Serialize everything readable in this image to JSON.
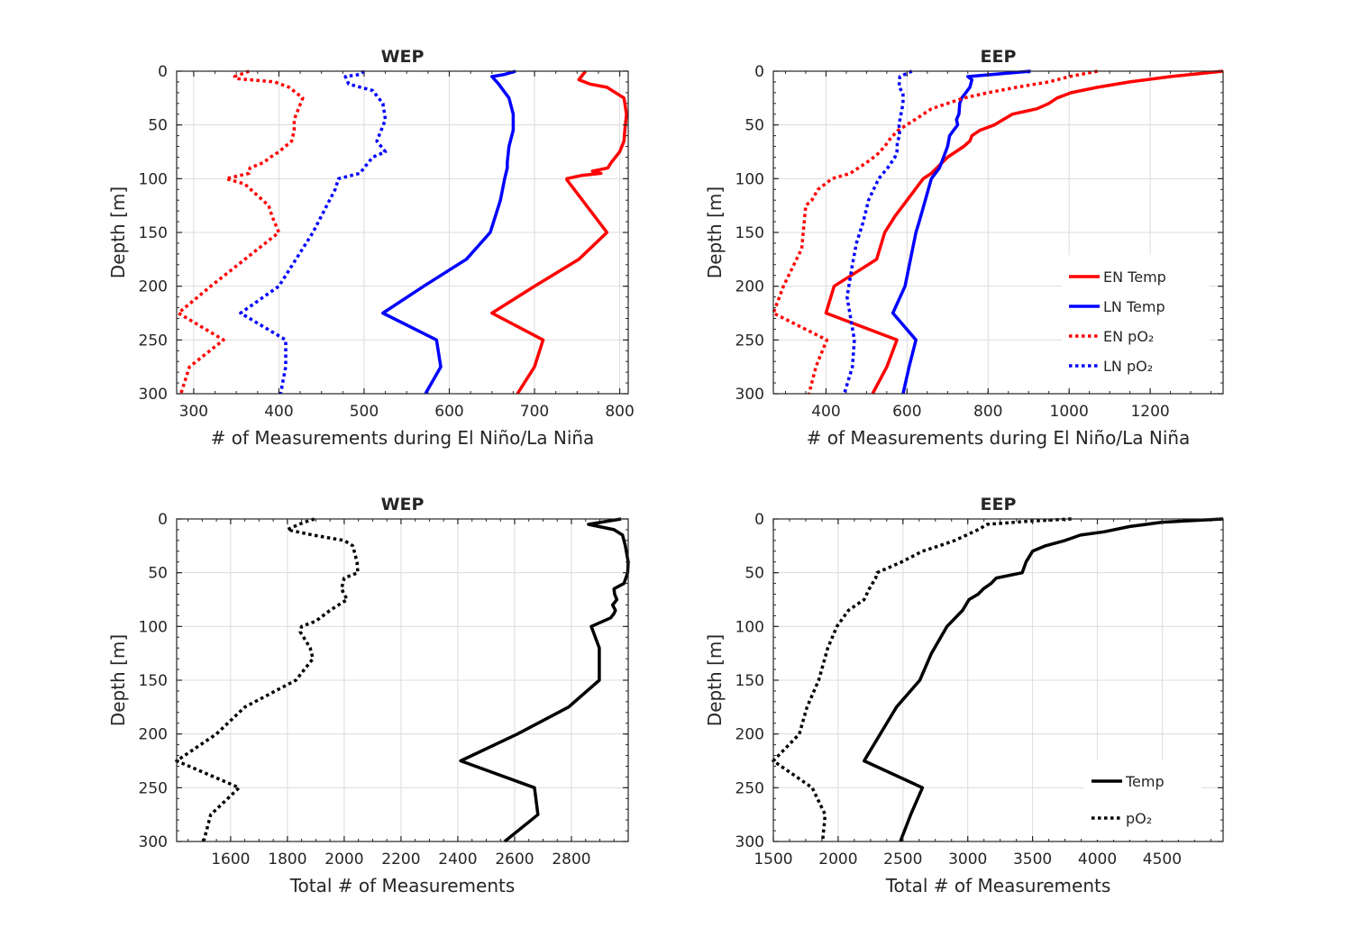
{
  "chart_data": [
    {
      "type": "line",
      "title": "WEP",
      "xlabel": "# of Measurements during El Niño/La Niña",
      "ylabel": "Depth [m]",
      "xlim": [
        280,
        810
      ],
      "ylim": [
        300,
        0
      ],
      "y_reversed": true,
      "xticks": [
        300,
        400,
        500,
        600,
        700,
        800
      ],
      "yticks": [
        0,
        50,
        100,
        150,
        200,
        250,
        300
      ],
      "grid": true,
      "legend": false,
      "series": [
        {
          "name": "EN Temp",
          "color": "#ff0000",
          "style": "solid",
          "x": [
            760,
            752,
            765,
            785,
            805,
            808,
            806,
            805,
            800,
            790,
            786,
            768,
            778,
            755,
            738,
            738,
            785,
            752,
            700,
            650,
            710,
            700,
            680
          ],
          "y": [
            0,
            8,
            12,
            15,
            25,
            40,
            55,
            65,
            75,
            85,
            90,
            93,
            95,
            97,
            100,
            101,
            150,
            175,
            200,
            225,
            250,
            275,
            300
          ]
        },
        {
          "name": "LN Temp",
          "color": "#0000ff",
          "style": "solid",
          "x": [
            678,
            665,
            650,
            658,
            670,
            675,
            675,
            670,
            668,
            668,
            665,
            660,
            648,
            620,
            570,
            522,
            585,
            590,
            572
          ],
          "y": [
            0,
            3,
            5,
            12,
            25,
            40,
            55,
            70,
            85,
            90,
            100,
            120,
            150,
            175,
            200,
            225,
            250,
            275,
            300
          ]
        },
        {
          "name": "EN pO₂",
          "color": "#ff0000",
          "style": "dotted",
          "x": [
            365,
            348,
            352,
            395,
            412,
            428,
            418,
            418,
            415,
            400,
            390,
            382,
            366,
            365,
            338,
            360,
            388,
            392,
            400,
            320,
            282,
            335,
            295,
            285
          ],
          "y": [
            0,
            5,
            7,
            10,
            15,
            25,
            45,
            55,
            65,
            75,
            80,
            85,
            90,
            95,
            100,
            105,
            125,
            135,
            150,
            200,
            225,
            250,
            275,
            300
          ]
        },
        {
          "name": "LN pO₂",
          "color": "#0000ff",
          "style": "dotted",
          "x": [
            500,
            495,
            478,
            482,
            510,
            522,
            525,
            520,
            515,
            525,
            510,
            495,
            470,
            466,
            440,
            400,
            355,
            408,
            408,
            402
          ],
          "y": [
            0,
            3,
            5,
            12,
            18,
            30,
            45,
            55,
            65,
            75,
            80,
            95,
            100,
            110,
            150,
            200,
            225,
            250,
            275,
            300
          ]
        }
      ]
    },
    {
      "type": "line",
      "title": "EEP",
      "xlabel": "# of Measurements during El Niño/La Niña",
      "ylabel": "Depth [m]",
      "xlim": [
        270,
        1380
      ],
      "ylim": [
        300,
        0
      ],
      "y_reversed": true,
      "xticks": [
        400,
        600,
        800,
        1000,
        1200
      ],
      "yticks": [
        0,
        50,
        100,
        150,
        200,
        250,
        300
      ],
      "grid": true,
      "legend": true,
      "legend_position": "bottom-right",
      "series": [
        {
          "name": "EN Temp",
          "color": "#ff0000",
          "style": "solid",
          "x": [
            1380,
            1250,
            1150,
            1070,
            1005,
            970,
            950,
            920,
            860,
            815,
            780,
            760,
            755,
            740,
            700,
            660,
            640,
            600,
            570,
            545,
            525,
            420,
            400,
            575,
            550,
            515
          ],
          "y": [
            0,
            5,
            10,
            15,
            20,
            25,
            30,
            35,
            40,
            50,
            55,
            60,
            65,
            70,
            80,
            95,
            100,
            120,
            135,
            150,
            175,
            200,
            225,
            250,
            275,
            300
          ]
        },
        {
          "name": "LN Temp",
          "color": "#0000ff",
          "style": "solid",
          "x": [
            905,
            750,
            760,
            755,
            745,
            735,
            730,
            728,
            722,
            725,
            715,
            705,
            700,
            695,
            690,
            680,
            660,
            645,
            630,
            622,
            595,
            565,
            622,
            605,
            590
          ],
          "y": [
            0,
            5,
            8,
            15,
            20,
            25,
            30,
            40,
            45,
            50,
            55,
            60,
            70,
            75,
            80,
            90,
            100,
            120,
            140,
            150,
            200,
            225,
            250,
            275,
            300
          ]
        },
        {
          "name": "EN pO₂",
          "color": "#ff0000",
          "style": "dotted",
          "x": [
            1070,
            1000,
            950,
            870,
            800,
            740,
            700,
            660,
            620,
            578,
            560,
            545,
            525,
            500,
            480,
            460,
            415,
            380,
            365,
            350,
            345,
            340,
            295,
            270,
            402,
            375,
            358
          ],
          "y": [
            0,
            5,
            10,
            15,
            20,
            25,
            30,
            35,
            45,
            55,
            62,
            70,
            78,
            85,
            90,
            95,
            100,
            110,
            120,
            125,
            145,
            165,
            200,
            225,
            250,
            275,
            300
          ]
        },
        {
          "name": "LN pO₂",
          "color": "#0000ff",
          "style": "dotted",
          "x": [
            612,
            582,
            580,
            590,
            590,
            585,
            580,
            582,
            576,
            575,
            570,
            552,
            530,
            505,
            492,
            475,
            465,
            452,
            470,
            465,
            445
          ],
          "y": [
            0,
            5,
            15,
            20,
            30,
            40,
            50,
            60,
            65,
            75,
            80,
            90,
            100,
            120,
            140,
            160,
            180,
            210,
            250,
            275,
            300
          ]
        }
      ]
    },
    {
      "type": "line",
      "title": "WEP",
      "xlabel": "Total # of Measurements",
      "ylabel": "Depth [m]",
      "xlim": [
        1410,
        3000
      ],
      "ylim": [
        300,
        0
      ],
      "y_reversed": true,
      "xticks": [
        1600,
        1800,
        2000,
        2200,
        2400,
        2600,
        2800
      ],
      "yticks": [
        0,
        50,
        100,
        150,
        200,
        250,
        300
      ],
      "grid": true,
      "legend": false,
      "series": [
        {
          "name": "Temp",
          "color": "#000000",
          "style": "solid",
          "x": [
            2975,
            2860,
            2950,
            2980,
            2990,
            3000,
            2998,
            2985,
            2950,
            2952,
            2960,
            2945,
            2955,
            2950,
            2938,
            2870,
            2898,
            2898,
            2790,
            2610,
            2410,
            2670,
            2682,
            2565
          ],
          "y": [
            0,
            5,
            10,
            15,
            25,
            40,
            50,
            60,
            65,
            70,
            75,
            80,
            85,
            88,
            92,
            100,
            120,
            150,
            175,
            200,
            225,
            250,
            275,
            300
          ]
        },
        {
          "name": "pO₂",
          "color": "#000000",
          "style": "dotted",
          "x": [
            1895,
            1860,
            1840,
            1800,
            1890,
            2000,
            2030,
            2045,
            2048,
            2000,
            1990,
            2010,
            1950,
            1900,
            1850,
            1845,
            1880,
            1890,
            1830,
            1650,
            1550,
            1410,
            1630,
            1530,
            1505
          ],
          "y": [
            0,
            3,
            5,
            10,
            15,
            20,
            25,
            40,
            50,
            55,
            65,
            75,
            85,
            95,
            100,
            105,
            120,
            130,
            150,
            175,
            200,
            225,
            250,
            275,
            300
          ]
        }
      ]
    },
    {
      "type": "line",
      "title": "EEP",
      "xlabel": "Total # of Measurements",
      "ylabel": "Depth [m]",
      "xlim": [
        1500,
        4970
      ],
      "ylim": [
        300,
        0
      ],
      "y_reversed": true,
      "xticks": [
        1500,
        2000,
        2500,
        3000,
        3500,
        4000,
        4500
      ],
      "yticks": [
        0,
        50,
        100,
        150,
        200,
        250,
        300
      ],
      "grid": true,
      "legend": true,
      "legend_position": "bottom-right",
      "series": [
        {
          "name": "Temp",
          "color": "#000000",
          "style": "solid",
          "x": [
            4970,
            4500,
            4250,
            4050,
            3870,
            3750,
            3600,
            3500,
            3450,
            3420,
            3220,
            3180,
            3120,
            3080,
            3010,
            2960,
            2840,
            2720,
            2630,
            2450,
            2200,
            2650,
            2560,
            2480
          ],
          "y": [
            0,
            3,
            7,
            12,
            15,
            20,
            25,
            30,
            40,
            50,
            55,
            60,
            65,
            70,
            75,
            85,
            100,
            125,
            150,
            175,
            225,
            250,
            275,
            300
          ]
        },
        {
          "name": "pO₂",
          "color": "#000000",
          "style": "dotted",
          "x": [
            3800,
            3480,
            3150,
            3080,
            2900,
            2780,
            2650,
            2490,
            2300,
            2290,
            2240,
            2200,
            2080,
            2020,
            1990,
            1920,
            1850,
            1760,
            1700,
            1500,
            1800,
            1900,
            1880
          ],
          "y": [
            0,
            2,
            5,
            10,
            20,
            25,
            30,
            40,
            50,
            55,
            65,
            75,
            85,
            95,
            100,
            120,
            150,
            175,
            200,
            225,
            250,
            275,
            300
          ]
        }
      ]
    }
  ]
}
